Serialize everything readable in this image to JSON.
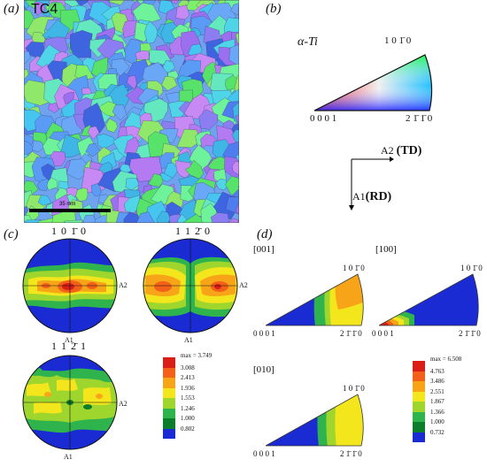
{
  "panels": {
    "a": {
      "label": "(a)",
      "sample": "TC4",
      "scale_bar": "35 mm"
    },
    "b": {
      "label": "(b)",
      "phase": "α-Ti",
      "ipf_corners": {
        "origin": "0 0 0 1",
        "right": "2 1̄ 1̄ 0",
        "top": "1 0 1̄ 0"
      },
      "axes": {
        "a2": "A2",
        "a2_dir": "(TD)",
        "a1": "A1",
        "a1_dir": "(RD)"
      }
    },
    "c": {
      "label": "(c)",
      "poles": [
        {
          "title": "1 0 1̄ 0",
          "a1": "A1",
          "a2": "A2"
        },
        {
          "title": "1 1 2̄ 0",
          "a1": "A1",
          "a2": "A2"
        },
        {
          "title": "1 1 2̄ 1",
          "a1": "A1",
          "a2": "A2"
        }
      ],
      "legend": {
        "max": "max = 3.749",
        "levels": [
          "3.008",
          "2.413",
          "1.936",
          "1.553",
          "1.246",
          "1.000",
          "0.802"
        ],
        "colors": [
          "#d91e18",
          "#f2601a",
          "#f7a418",
          "#f4e61c",
          "#9fd62d",
          "#2fb34d",
          "#0b7d2b",
          "#1a2bd4"
        ]
      }
    },
    "d": {
      "label": "(d)",
      "ipfs": [
        {
          "title": "[001]",
          "origin": "0 0 0 1",
          "right": "2 1̄ 1̄ 0",
          "top": "1 0 1̄ 0"
        },
        {
          "title": "[100]",
          "origin": "0 0 0 1",
          "right": "2 1̄ 1̄ 0",
          "top": "1 0 1̄ 0"
        },
        {
          "title": "[010]",
          "origin": "0 0 0 1",
          "right": "2 1̄ 1̄ 0",
          "top": "1 0 1̄ 0"
        }
      ],
      "legend": {
        "max": "max = 6.508",
        "levels": [
          "4.763",
          "3.486",
          "2.551",
          "1.867",
          "1.366",
          "1.000",
          "0.732"
        ],
        "colors": [
          "#d91e18",
          "#f2601a",
          "#f7a418",
          "#f4e61c",
          "#9fd62d",
          "#2fb34d",
          "#0b7d2b",
          "#1a2bd4"
        ]
      }
    }
  }
}
